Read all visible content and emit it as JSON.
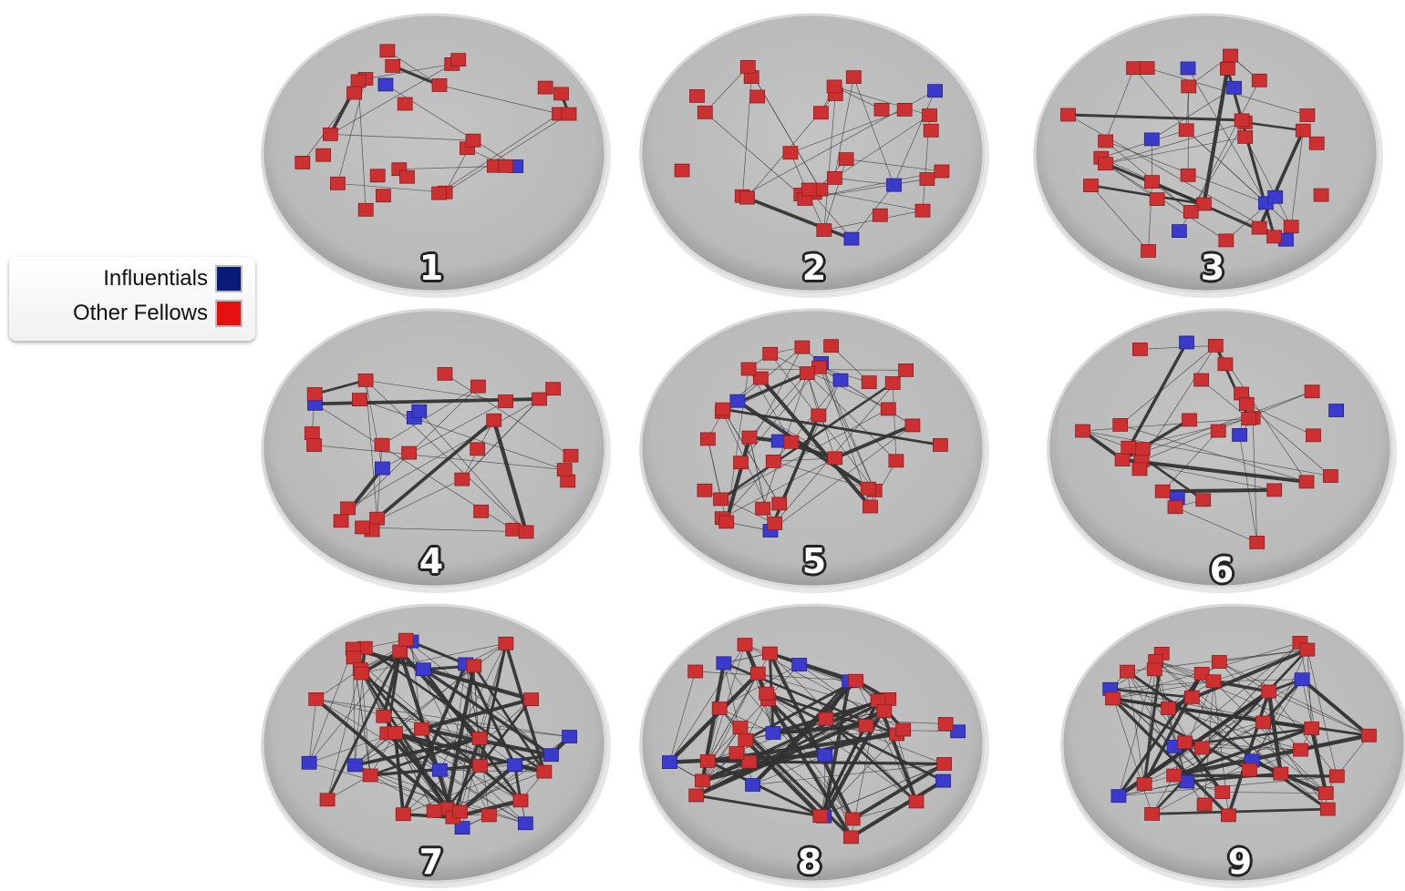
{
  "legend": {
    "items": [
      {
        "label": "Influentials",
        "color": "#0a1a78"
      },
      {
        "label": "Other Fellows",
        "color": "#e51010"
      }
    ]
  },
  "colors": {
    "influential": "#3a3acc",
    "other": "#cc3030",
    "disc": "#bdbdbd",
    "edge": "#333333"
  },
  "panels": [
    {
      "label": "1"
    },
    {
      "label": "2"
    },
    {
      "label": "3"
    },
    {
      "label": "4"
    },
    {
      "label": "5"
    },
    {
      "label": "6"
    },
    {
      "label": "7"
    },
    {
      "label": "8"
    },
    {
      "label": "9"
    }
  ]
}
